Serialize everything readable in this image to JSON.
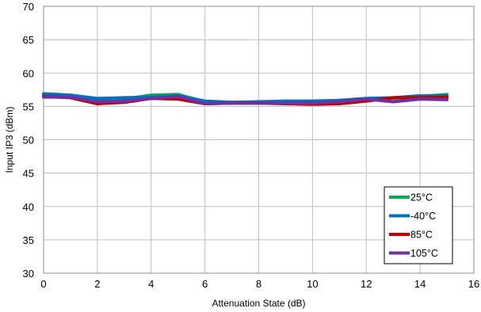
{
  "chart_data": {
    "type": "line",
    "title": "",
    "xlabel": "Attenuation State (dB)",
    "ylabel": "Input IP3 (dBm)",
    "xlim": [
      0,
      16
    ],
    "ylim": [
      30,
      70
    ],
    "xticks": [
      0,
      2,
      4,
      6,
      8,
      10,
      12,
      14,
      16
    ],
    "yticks": [
      30,
      35,
      40,
      45,
      50,
      55,
      60,
      65,
      70
    ],
    "grid": true,
    "legend_position": "bottom-right",
    "x": [
      0,
      1,
      2,
      3,
      4,
      5,
      6,
      7,
      8,
      9,
      10,
      11,
      12,
      13,
      14,
      15
    ],
    "series": [
      {
        "name": "25°C",
        "color": "#00b050",
        "values": [
          56.8,
          56.6,
          56.0,
          56.1,
          56.7,
          56.8,
          55.7,
          55.6,
          55.6,
          55.7,
          55.6,
          55.9,
          56.1,
          56.2,
          56.5,
          56.8
        ]
      },
      {
        "name": "-40°C",
        "color": "#0070c0",
        "values": [
          56.9,
          56.7,
          56.2,
          56.3,
          56.4,
          56.6,
          55.8,
          55.6,
          55.7,
          55.8,
          55.8,
          55.9,
          56.2,
          56.3,
          56.6,
          56.6
        ]
      },
      {
        "name": "85°C",
        "color": "#c00000",
        "values": [
          56.5,
          56.3,
          55.4,
          55.6,
          56.2,
          56.1,
          55.4,
          55.5,
          55.5,
          55.4,
          55.3,
          55.4,
          55.8,
          56.3,
          56.3,
          56.4
        ]
      },
      {
        "name": "105°C",
        "color": "#7030a0",
        "values": [
          56.4,
          56.4,
          55.7,
          55.8,
          56.2,
          56.5,
          55.4,
          55.5,
          55.5,
          55.5,
          55.5,
          55.7,
          56.1,
          55.7,
          56.1,
          56.0
        ]
      }
    ]
  }
}
